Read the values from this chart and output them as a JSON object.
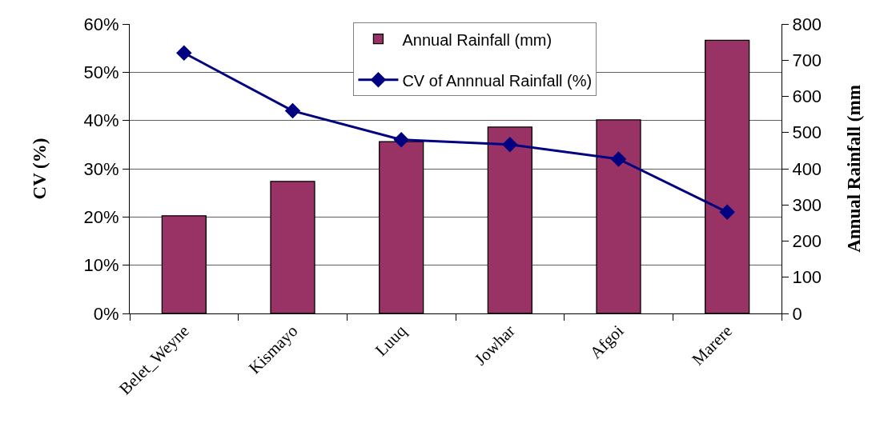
{
  "chart_data": {
    "type": "bar",
    "categories": [
      "Belet_Weyne",
      "Kismayo",
      "Luuq",
      "Jowhar",
      "Afgoi",
      "Marere"
    ],
    "ylabel": "CV (%)",
    "y2label": "Annual Rainfall (mm",
    "series": [
      {
        "name": "Annual Rainfall (mm)",
        "color": "#993366",
        "axis": "y2",
        "values": [
          270,
          365,
          475,
          515,
          535,
          755
        ]
      },
      {
        "name": "CV of Annnual Rainfall (%)",
        "type": "line",
        "color": "#000080",
        "values": [
          54,
          42,
          36,
          35,
          32,
          21
        ]
      }
    ],
    "ylim": [
      0,
      60
    ],
    "yticks": [
      {
        "value": 0,
        "label": "0%"
      },
      {
        "value": 10,
        "label": "10%"
      },
      {
        "value": 20,
        "label": "20%"
      },
      {
        "value": 30,
        "label": "30%"
      },
      {
        "value": 40,
        "label": "40%"
      },
      {
        "value": 50,
        "label": "50%"
      },
      {
        "value": 60,
        "label": "60%"
      }
    ],
    "y2lim": [
      0,
      800
    ],
    "y2ticks": [
      0,
      100,
      200,
      300,
      400,
      500,
      600,
      700,
      800
    ],
    "grid": "y",
    "legend": "top",
    "marker": "diamond",
    "line_style": "solid"
  }
}
